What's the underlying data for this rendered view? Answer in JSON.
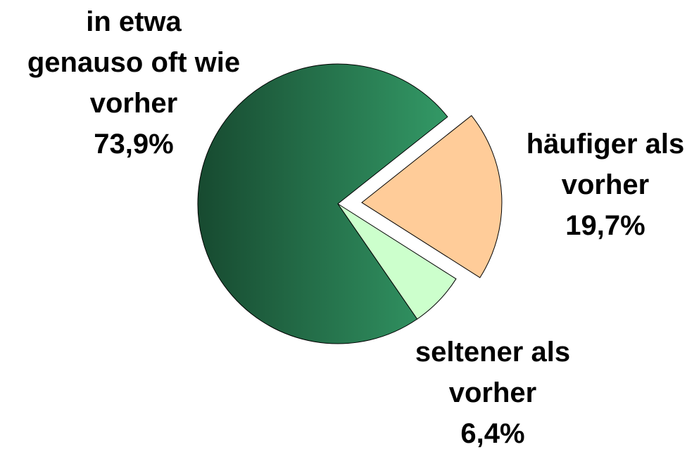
{
  "chart_data": {
    "type": "pie",
    "categories": [
      "in etwa\ngenauso oft wie\nvorher",
      "häufiger als\nvorher",
      "seltener als\nvorher"
    ],
    "values": [
      73.9,
      19.7,
      6.4
    ],
    "value_labels": [
      "73,9%",
      "19,7%",
      "6,4%"
    ],
    "colors": [
      "#339966",
      "#ffcc99",
      "#ccffcc"
    ]
  }
}
